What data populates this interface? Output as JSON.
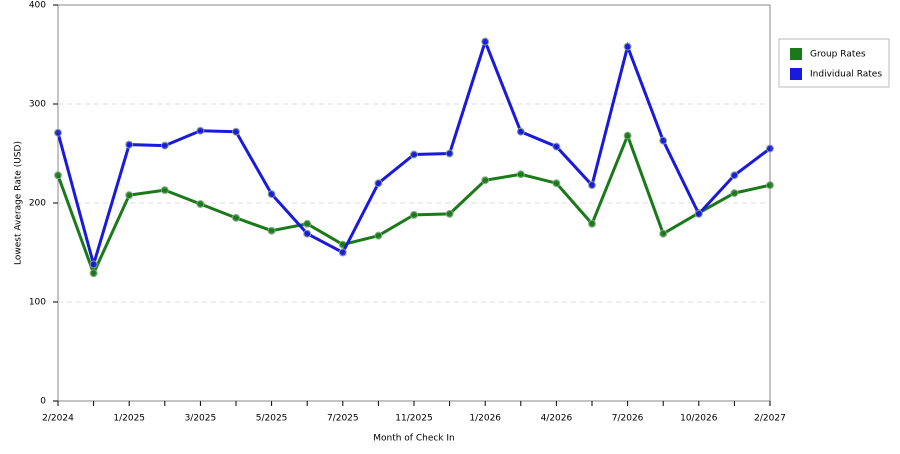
{
  "chart_data": {
    "type": "line",
    "x_label": "Month of Check In",
    "y_label": "Lowest Average Rate (USD)",
    "categories": [
      "2/2024",
      null,
      "1/2025",
      null,
      "3/2025",
      null,
      "5/2025",
      null,
      "7/2025",
      null,
      "11/2025",
      null,
      "1/2026",
      null,
      "4/2026",
      null,
      "7/2026",
      null,
      "10/2026",
      null,
      "2/2027"
    ],
    "series": [
      {
        "name": "Group Rates",
        "color": "#1a7a1a",
        "values": [
          228,
          129,
          208,
          213,
          199,
          185,
          172,
          179,
          158,
          167,
          188,
          189,
          223,
          229,
          220,
          179,
          268,
          169,
          190,
          210,
          218
        ]
      },
      {
        "name": "Individual Rates",
        "color": "#1a1adc",
        "values": [
          271,
          138,
          259,
          258,
          273,
          272,
          209,
          169,
          150,
          220,
          249,
          250,
          363,
          272,
          257,
          218,
          358,
          263,
          189,
          228,
          255
        ]
      }
    ],
    "ylim": [
      0,
      400
    ],
    "yticks": [
      0,
      100,
      200,
      300,
      400
    ],
    "grid": true,
    "legend": "right"
  }
}
